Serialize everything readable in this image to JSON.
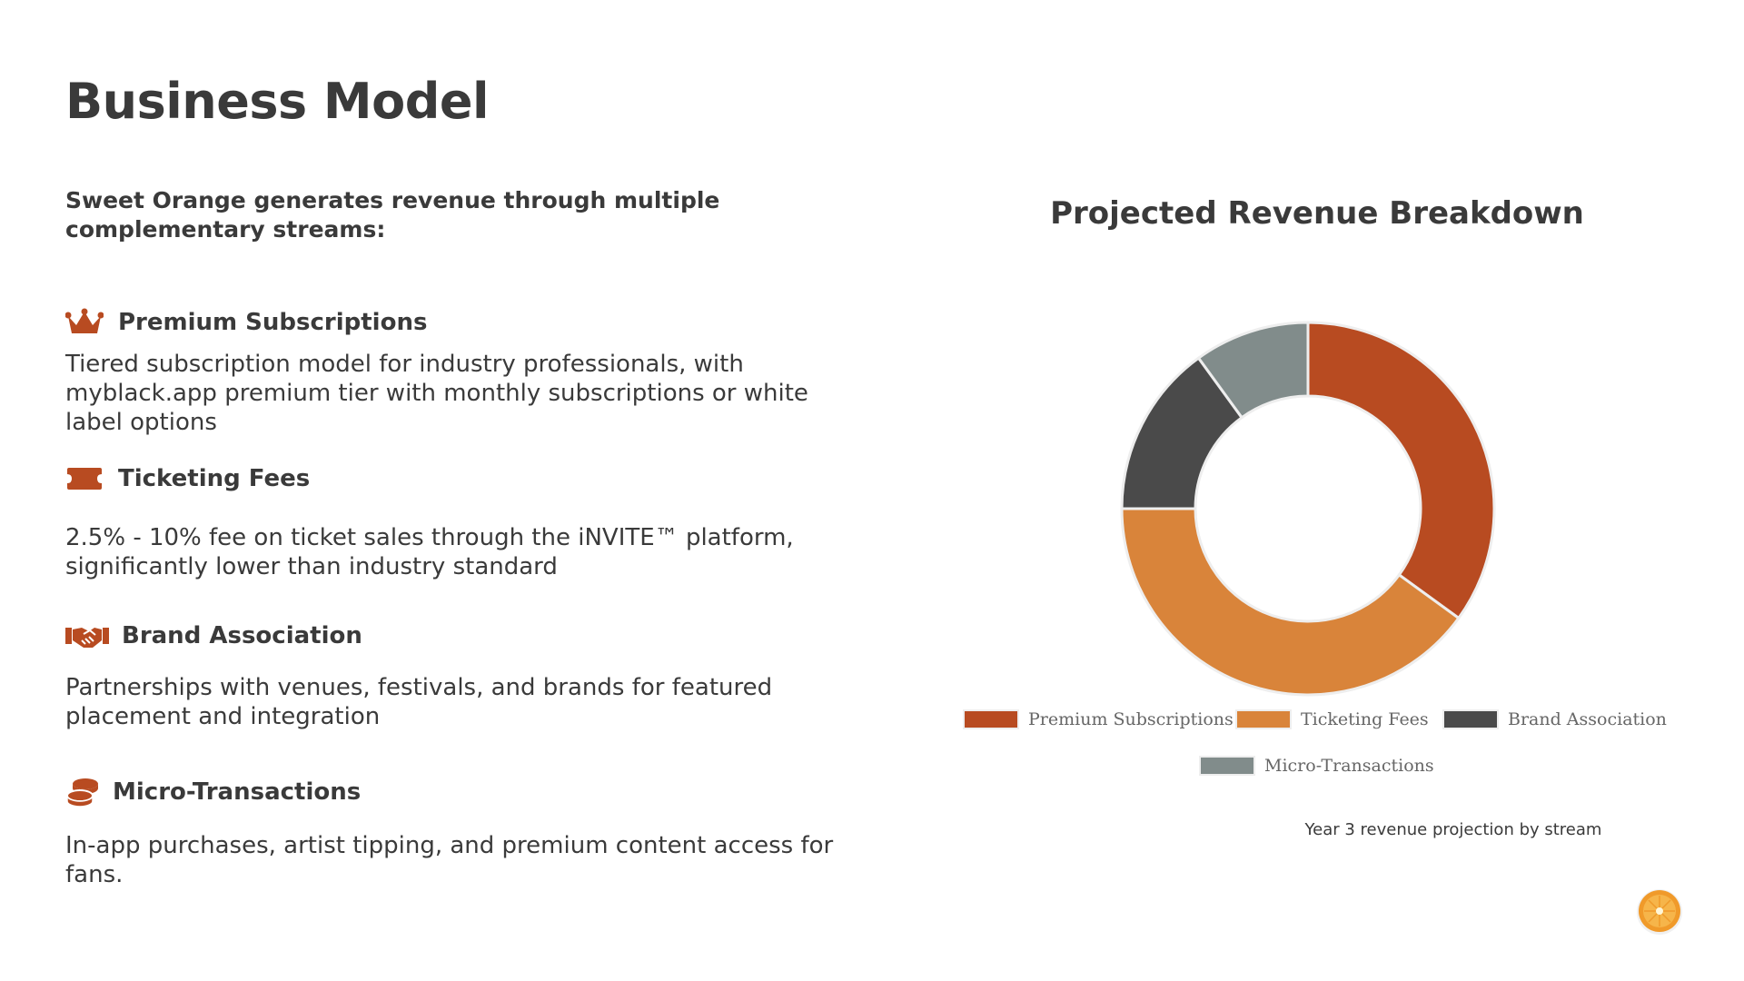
{
  "page": {
    "title": "Business Model",
    "intro": "Sweet Orange generates revenue through multiple complementary streams:"
  },
  "streams": [
    {
      "icon": "crown-icon",
      "title": "Premium Subscriptions",
      "description": "Tiered subscription model for industry professionals, with myblack.app premium tier with monthly subscriptions or white label options"
    },
    {
      "icon": "ticket-icon",
      "title": "Ticketing Fees",
      "description": "2.5% - 10% fee on ticket sales through the iNVITE™ platform, significantly lower than industry standard"
    },
    {
      "icon": "handshake-icon",
      "title": "Brand Association",
      "description": "Partnerships with venues, festivals, and brands for featured placement and integration"
    },
    {
      "icon": "coins-icon",
      "title": "Micro-Transactions",
      "description": "In-app purchases, artist tipping, and premium content access for fans."
    }
  ],
  "colors": {
    "accent": "#b84b21",
    "text": "#3a3a3a"
  },
  "chart_data": {
    "type": "pie",
    "style": "donut",
    "title": "Projected Revenue Breakdown",
    "categories": [
      "Premium Subscriptions",
      "Ticketing Fees",
      "Brand Association",
      "Micro-Transactions"
    ],
    "values": [
      35,
      40,
      15,
      10
    ],
    "colors": [
      "#b84b21",
      "#d9843a",
      "#4a4a4a",
      "#818c8b"
    ],
    "legend_position": "bottom",
    "caption": "Year 3 revenue projection by stream"
  }
}
